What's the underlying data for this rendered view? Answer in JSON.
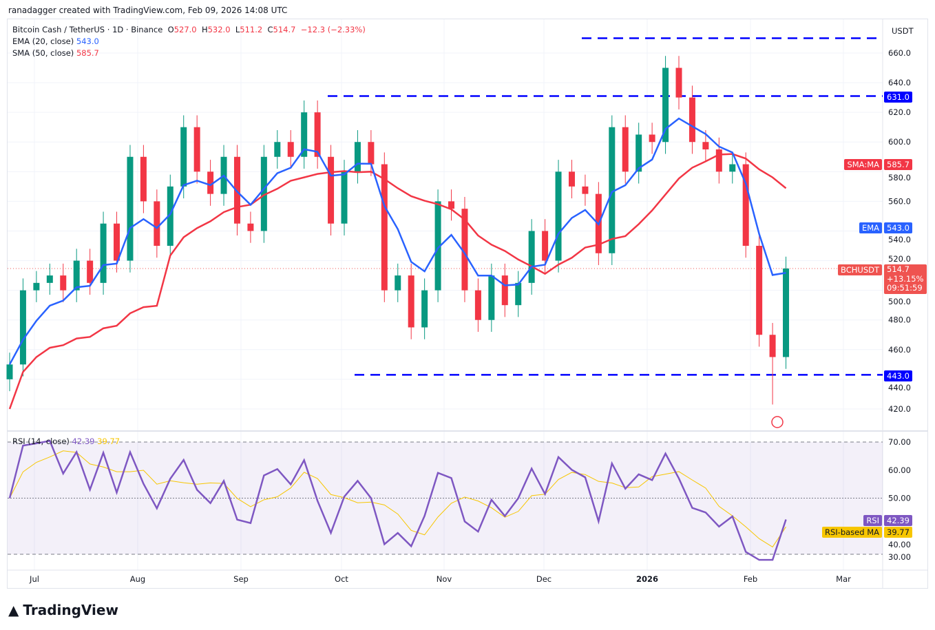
{
  "credit": "ranadagger created with TradingView.com, Feb 09, 2026 14:08 UTC",
  "legend": {
    "symbol": "Bitcoin Cash / TetherUS · 1D · Binance",
    "o_label": "O",
    "o": "527.0",
    "h_label": "H",
    "h": "532.0",
    "l_label": "L",
    "l": "511.2",
    "c_label": "C",
    "c": "514.7",
    "change": "−12.3 (−2.33%)",
    "ema_label": "EMA (20, close)",
    "ema": "543.0",
    "sma_label": "SMA (50, close)",
    "sma": "585.7",
    "rsi_label": "RSI (14, close)",
    "rsi": "42.39",
    "rsi_ma": "39.77"
  },
  "axis": {
    "currency": "USDT",
    "price_ticks": [
      420,
      440,
      460,
      480,
      500,
      520,
      540,
      560,
      580,
      600,
      620,
      640,
      660
    ],
    "rsi_ticks": [
      30,
      40,
      50,
      60,
      70
    ],
    "time_labels": [
      "Jul",
      "Aug",
      "Sep",
      "Oct",
      "Nov",
      "Dec",
      "2026",
      "Feb",
      "Mar"
    ]
  },
  "tags": {
    "sma_name": "SMA:MA",
    "sma_val": "585.7",
    "ema_name": "EMA",
    "ema_val": "543.0",
    "sym": "BCHUSDT",
    "price": "514.7",
    "pct": "+13.15%",
    "countdown": "09:51:59",
    "rsi_name": "RSI",
    "rsi_val": "42.39",
    "rsima_name": "RSI-based MA",
    "rsima_val": "39.77",
    "level_top": "670.0",
    "level_631": "631.0",
    "level_443": "443.0"
  },
  "colors": {
    "up": "#089981",
    "down": "#f23645",
    "ema": "#2962ff",
    "sma": "#f23645",
    "rsi": "#7e57c2",
    "rsi_ma": "#f7c600",
    "levels": "#0000ff"
  },
  "chart_data": {
    "type": "candlestick",
    "symbol": "BCHUSDT",
    "interval": "1D",
    "ylim": [
      410,
      675
    ],
    "levels": [
      670,
      631,
      443
    ],
    "closes": [
      450,
      500,
      505,
      510,
      500,
      520,
      505,
      545,
      520,
      590,
      560,
      530,
      570,
      610,
      580,
      565,
      590,
      545,
      540,
      590,
      600,
      590,
      620,
      590,
      545,
      580,
      600,
      585,
      500,
      510,
      475,
      500,
      560,
      555,
      500,
      480,
      510,
      490,
      505,
      540,
      520,
      580,
      570,
      565,
      525,
      610,
      580,
      605,
      600,
      650,
      630,
      600,
      595,
      580,
      585,
      530,
      470,
      455,
      514.7
    ],
    "last_low": 423,
    "rsi_ylim": [
      25,
      75
    ]
  },
  "brand": "TradingView"
}
